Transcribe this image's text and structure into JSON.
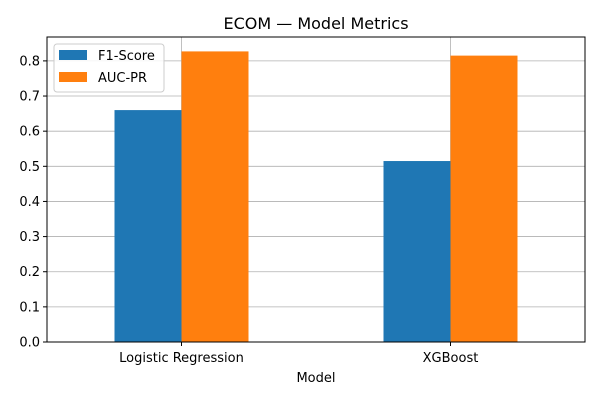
{
  "chart_data": {
    "type": "bar",
    "title": "ECOM — Model Metrics",
    "xlabel": "Model",
    "ylabel": "",
    "categories": [
      "Logistic Regression",
      "XGBoost"
    ],
    "series": [
      {
        "name": "F1-Score",
        "color": "#1f77b4",
        "values": [
          0.66,
          0.515
        ]
      },
      {
        "name": "AUC-PR",
        "color": "#ff7f0e",
        "values": [
          0.827,
          0.815
        ]
      }
    ],
    "ylim": [
      0,
      0.868
    ],
    "yticks": [
      "0.0",
      "0.1",
      "0.2",
      "0.3",
      "0.4",
      "0.5",
      "0.6",
      "0.7",
      "0.8"
    ],
    "grid": true,
    "legend_position": "top-left"
  }
}
